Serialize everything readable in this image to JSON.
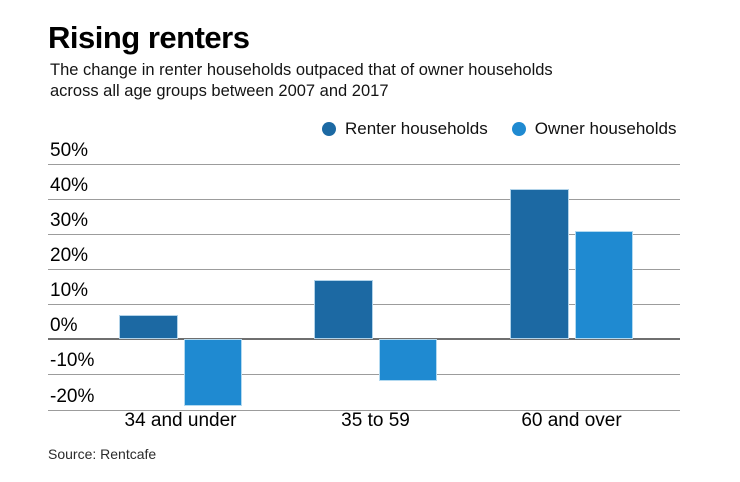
{
  "header": {
    "title": "Rising renters",
    "subtitle_line1": "The change in renter households outpaced that of owner households",
    "subtitle_line2": "across all age groups between 2007 and 2017"
  },
  "legend": [
    {
      "label": "Renter households",
      "color": "#1c69a3"
    },
    {
      "label": "Owner households",
      "color": "#1f8ad1"
    }
  ],
  "source": "Source: Rentcafe",
  "colors": {
    "renter": "#1c69a3",
    "owner": "#1f8ad1",
    "gridline": "#9c9c9c",
    "zero_line": "#6f6f6f"
  },
  "chart_data": {
    "type": "bar",
    "title": "Rising renters",
    "categories": [
      "34 and under",
      "35 to 59",
      "60 and over"
    ],
    "series": [
      {
        "name": "Renter households",
        "color": "#1c69a3",
        "values": [
          7,
          17,
          43
        ]
      },
      {
        "name": "Owner households",
        "color": "#1f8ad1",
        "values": [
          -19,
          -12,
          31
        ]
      }
    ],
    "xlabel": "",
    "ylabel": "",
    "ylim": [
      -20,
      50
    ],
    "ytick_step": 10,
    "ytick_format": "percent",
    "yticks": [
      "50%",
      "40%",
      "30%",
      "20%",
      "10%",
      "0%",
      "-10%",
      "-20%"
    ],
    "grid": true,
    "legend_position": "top"
  }
}
